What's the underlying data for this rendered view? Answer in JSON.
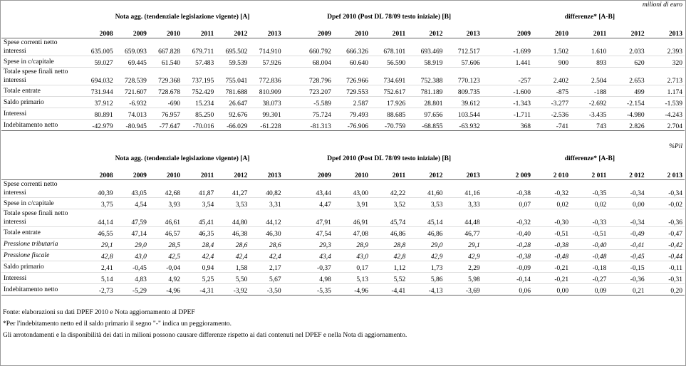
{
  "tables": [
    {
      "unit": "milioni di euro",
      "groups": [
        "Nota agg. (tendenziale legislazione vigente) [A]",
        "Dpef 2010 (Post DL 78/09 testo iniziale) [B]",
        "differenze* [A-B]"
      ],
      "years": {
        "a": [
          "2008",
          "2009",
          "2010",
          "2011",
          "2012",
          "2013"
        ],
        "b": [
          "2009",
          "2010",
          "2011",
          "2012",
          "2013"
        ],
        "diff": [
          "2009",
          "2010",
          "2011",
          "2012",
          "2013"
        ]
      },
      "rows": [
        {
          "label": "Spese correnti netto interessi",
          "a": [
            "635.005",
            "659.093",
            "667.828",
            "679.711",
            "695.502",
            "714.910"
          ],
          "b": [
            "660.792",
            "666.326",
            "678.101",
            "693.469",
            "712.517"
          ],
          "diff": [
            "-1.699",
            "1.502",
            "1.610",
            "2.033",
            "2.393"
          ]
        },
        {
          "label": "Spese in c/capitale",
          "a": [
            "59.027",
            "69.445",
            "61.540",
            "57.483",
            "59.539",
            "57.926"
          ],
          "b": [
            "68.004",
            "60.640",
            "56.590",
            "58.919",
            "57.606"
          ],
          "diff": [
            "1.441",
            "900",
            "893",
            "620",
            "320"
          ]
        },
        {
          "label": "Totale spese finali netto interessi",
          "a": [
            "694.032",
            "728.539",
            "729.368",
            "737.195",
            "755.041",
            "772.836"
          ],
          "b": [
            "728.796",
            "726.966",
            "734.691",
            "752.388",
            "770.123"
          ],
          "diff": [
            "-257",
            "2.402",
            "2.504",
            "2.653",
            "2.713"
          ]
        },
        {
          "label": "Totale entrate",
          "a": [
            "731.944",
            "721.607",
            "728.678",
            "752.429",
            "781.688",
            "810.909"
          ],
          "b": [
            "723.207",
            "729.553",
            "752.617",
            "781.189",
            "809.735"
          ],
          "diff": [
            "-1.600",
            "-875",
            "-188",
            "499",
            "1.174"
          ]
        },
        {
          "label": "Saldo primario",
          "a": [
            "37.912",
            "-6.932",
            "-690",
            "15.234",
            "26.647",
            "38.073"
          ],
          "b": [
            "-5.589",
            "2.587",
            "17.926",
            "28.801",
            "39.612"
          ],
          "diff": [
            "-1.343",
            "-3.277",
            "-2.692",
            "-2.154",
            "-1.539"
          ]
        },
        {
          "label": "Interessi",
          "a": [
            "80.891",
            "74.013",
            "76.957",
            "85.250",
            "92.676",
            "99.301"
          ],
          "b": [
            "75.724",
            "79.493",
            "88.685",
            "97.656",
            "103.544"
          ],
          "diff": [
            "-1.711",
            "-2.536",
            "-3.435",
            "-4.980",
            "-4.243"
          ]
        },
        {
          "label": "Indebitamento netto",
          "a": [
            "-42.979",
            "-80.945",
            "-77.647",
            "-70.016",
            "-66.029",
            "-61.228"
          ],
          "b": [
            "-81.313",
            "-76.906",
            "-70.759",
            "-68.855",
            "-63.932"
          ],
          "diff": [
            "368",
            "-741",
            "743",
            "2.826",
            "2.704"
          ]
        }
      ]
    },
    {
      "unit": "%Pil",
      "groups": [
        "Nota agg. (tendenziale legislazione vigente) [A]",
        "Dpef 2010 (Post DL 78/09 testo iniziale) [B]",
        "differenze* [A-B]"
      ],
      "years": {
        "a": [
          "2008",
          "2009",
          "2010",
          "2011",
          "2012",
          "2013"
        ],
        "b": [
          "2009",
          "2010",
          "2011",
          "2012",
          "2013"
        ],
        "diff": [
          "2 009",
          "2 010",
          "2 011",
          "2 012",
          "2 013"
        ]
      },
      "rows": [
        {
          "label": "Spese correnti netto interessi",
          "a": [
            "40,39",
            "43,05",
            "42,68",
            "41,87",
            "41,27",
            "40,82"
          ],
          "b": [
            "43,44",
            "43,00",
            "42,22",
            "41,60",
            "41,16"
          ],
          "diff": [
            "-0,38",
            "-0,32",
            "-0,35",
            "-0,34",
            "-0,34"
          ]
        },
        {
          "label": "Spese in c/capitale",
          "a": [
            "3,75",
            "4,54",
            "3,93",
            "3,54",
            "3,53",
            "3,31"
          ],
          "b": [
            "4,47",
            "3,91",
            "3,52",
            "3,53",
            "3,33"
          ],
          "diff": [
            "0,07",
            "0,02",
            "0,02",
            "0,00",
            "-0,02"
          ]
        },
        {
          "label": "Totale spese finali netto interessi",
          "a": [
            "44,14",
            "47,59",
            "46,61",
            "45,41",
            "44,80",
            "44,12"
          ],
          "b": [
            "47,91",
            "46,91",
            "45,74",
            "45,14",
            "44,48"
          ],
          "diff": [
            "-0,32",
            "-0,30",
            "-0,33",
            "-0,34",
            "-0,36"
          ]
        },
        {
          "label": "Totale entrate",
          "a": [
            "46,55",
            "47,14",
            "46,57",
            "46,35",
            "46,38",
            "46,30"
          ],
          "b": [
            "47,54",
            "47,08",
            "46,86",
            "46,86",
            "46,77"
          ],
          "diff": [
            "-0,40",
            "-0,51",
            "-0,51",
            "-0,49",
            "-0,47"
          ]
        },
        {
          "label": "Pressione tributaria",
          "italic": true,
          "a": [
            "29,1",
            "29,0",
            "28,5",
            "28,4",
            "28,6",
            "28,6"
          ],
          "b": [
            "29,3",
            "28,9",
            "28,8",
            "29,0",
            "29,1"
          ],
          "diff": [
            "-0,28",
            "-0,38",
            "-0,40",
            "-0,41",
            "-0,42"
          ]
        },
        {
          "label": "Pressione fiscale",
          "italic": true,
          "a": [
            "42,8",
            "43,0",
            "42,5",
            "42,4",
            "42,4",
            "42,4"
          ],
          "b": [
            "43,4",
            "43,0",
            "42,8",
            "42,9",
            "42,9"
          ],
          "diff": [
            "-0,38",
            "-0,48",
            "-0,48",
            "-0,45",
            "-0,44"
          ]
        },
        {
          "label": "Saldo primario",
          "a": [
            "2,41",
            "-0,45",
            "-0,04",
            "0,94",
            "1,58",
            "2,17"
          ],
          "b": [
            "-0,37",
            "0,17",
            "1,12",
            "1,73",
            "2,29"
          ],
          "diff": [
            "-0,09",
            "-0,21",
            "-0,18",
            "-0,15",
            "-0,11"
          ]
        },
        {
          "label": "Interessi",
          "a": [
            "5,14",
            "4,83",
            "4,92",
            "5,25",
            "5,50",
            "5,67"
          ],
          "b": [
            "4,98",
            "5,13",
            "5,52",
            "5,86",
            "5,98"
          ],
          "diff": [
            "-0,14",
            "-0,21",
            "-0,27",
            "-0,36",
            "-0,31"
          ]
        },
        {
          "label": "Indebitamento netto",
          "a": [
            "-2,73",
            "-5,29",
            "-4,96",
            "-4,31",
            "-3,92",
            "-3,50"
          ],
          "b": [
            "-5,35",
            "-4,96",
            "-4,41",
            "-4,13",
            "-3,69"
          ],
          "diff": [
            "0,06",
            "0,00",
            "0,09",
            "0,21",
            "0,20"
          ]
        }
      ]
    }
  ],
  "notes": [
    "Fonte: elaborazioni su dati DPEF 2010 e Nota aggiornamento al DPEF",
    "*Per l'indebitamento netto ed il saldo primario il segno \"-\" indica un peggioramento.",
    "Gli arrotondamenti e la disponibilità dei dati in milioni possono causare differenze rispetto ai dati contenuti nel DPEF e nella Nota di aggiornamento."
  ]
}
